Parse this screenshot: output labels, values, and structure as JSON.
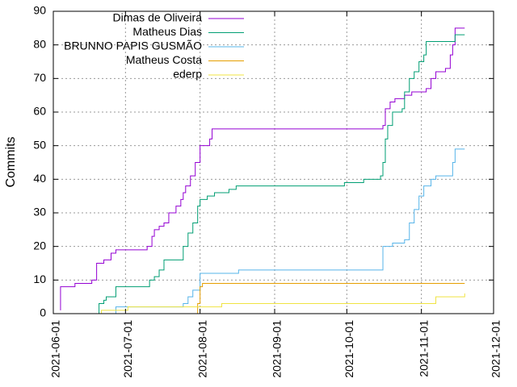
{
  "chart_data": {
    "type": "line",
    "title": "",
    "xlabel": "",
    "ylabel": "Commits",
    "xlim": [
      "2021-06-01",
      "2021-12-01"
    ],
    "ylim": [
      0,
      90
    ],
    "x_ticks": [
      "2021-06-01",
      "2021-07-01",
      "2021-08-01",
      "2021-09-01",
      "2021-10-01",
      "2021-11-01",
      "2021-12-01"
    ],
    "y_ticks": [
      0,
      10,
      20,
      30,
      40,
      50,
      60,
      70,
      80,
      90
    ],
    "grid": true,
    "legend": "top-left-inside",
    "series": [
      {
        "name": "Dimas de Oliveira",
        "color": "#9400d3",
        "points": [
          [
            "2021-06-04",
            1
          ],
          [
            "2021-06-04",
            8
          ],
          [
            "2021-06-10",
            9
          ],
          [
            "2021-06-17",
            10
          ],
          [
            "2021-06-19",
            15
          ],
          [
            "2021-06-22",
            16
          ],
          [
            "2021-06-25",
            18
          ],
          [
            "2021-06-27",
            19
          ],
          [
            "2021-07-08",
            19
          ],
          [
            "2021-07-10",
            20
          ],
          [
            "2021-07-12",
            23
          ],
          [
            "2021-07-13",
            25
          ],
          [
            "2021-07-15",
            26
          ],
          [
            "2021-07-17",
            27
          ],
          [
            "2021-07-19",
            30
          ],
          [
            "2021-07-22",
            32
          ],
          [
            "2021-07-24",
            34
          ],
          [
            "2021-07-25",
            36
          ],
          [
            "2021-07-26",
            38
          ],
          [
            "2021-07-28",
            41
          ],
          [
            "2021-07-30",
            45
          ],
          [
            "2021-08-01",
            50
          ],
          [
            "2021-08-05",
            52
          ],
          [
            "2021-08-06",
            55
          ],
          [
            "2021-10-15",
            55
          ],
          [
            "2021-10-16",
            56
          ],
          [
            "2021-10-17",
            61
          ],
          [
            "2021-10-19",
            63
          ],
          [
            "2021-10-21",
            64
          ],
          [
            "2021-10-25",
            65
          ],
          [
            "2021-10-28",
            66
          ],
          [
            "2021-11-01",
            66
          ],
          [
            "2021-11-03",
            67
          ],
          [
            "2021-11-05",
            70
          ],
          [
            "2021-11-07",
            72
          ],
          [
            "2021-11-11",
            73
          ],
          [
            "2021-11-13",
            77
          ],
          [
            "2021-11-14",
            80
          ],
          [
            "2021-11-15",
            85
          ],
          [
            "2021-11-19",
            85
          ]
        ]
      },
      {
        "name": "Matheus Dias",
        "color": "#009e73",
        "points": [
          [
            "2021-06-20",
            0
          ],
          [
            "2021-06-20",
            3
          ],
          [
            "2021-06-22",
            4
          ],
          [
            "2021-06-23",
            5
          ],
          [
            "2021-06-27",
            8
          ],
          [
            "2021-07-10",
            8
          ],
          [
            "2021-07-11",
            10
          ],
          [
            "2021-07-13",
            11
          ],
          [
            "2021-07-15",
            13
          ],
          [
            "2021-07-17",
            16
          ],
          [
            "2021-07-24",
            16
          ],
          [
            "2021-07-25",
            20
          ],
          [
            "2021-07-27",
            24
          ],
          [
            "2021-07-29",
            27
          ],
          [
            "2021-07-31",
            32
          ],
          [
            "2021-08-01",
            34
          ],
          [
            "2021-08-04",
            35
          ],
          [
            "2021-08-07",
            36
          ],
          [
            "2021-08-13",
            37
          ],
          [
            "2021-08-16",
            38
          ],
          [
            "2021-09-20",
            38
          ],
          [
            "2021-09-30",
            39
          ],
          [
            "2021-10-08",
            40
          ],
          [
            "2021-10-15",
            41
          ],
          [
            "2021-10-16",
            45
          ],
          [
            "2021-10-17",
            52
          ],
          [
            "2021-10-18",
            56
          ],
          [
            "2021-10-20",
            60
          ],
          [
            "2021-10-24",
            61
          ],
          [
            "2021-10-25",
            66
          ],
          [
            "2021-10-27",
            70
          ],
          [
            "2021-10-29",
            72
          ],
          [
            "2021-10-31",
            75
          ],
          [
            "2021-11-02",
            77
          ],
          [
            "2021-11-03",
            81
          ],
          [
            "2021-11-14",
            81
          ],
          [
            "2021-11-15",
            83
          ],
          [
            "2021-11-19",
            83
          ]
        ]
      },
      {
        "name": "BRUNNO PAPIS GUSMÃO",
        "color": "#56b4e9",
        "points": [
          [
            "2021-06-27",
            0
          ],
          [
            "2021-06-27",
            2
          ],
          [
            "2021-07-23",
            2
          ],
          [
            "2021-07-25",
            3
          ],
          [
            "2021-07-27",
            5
          ],
          [
            "2021-07-29",
            7
          ],
          [
            "2021-08-01",
            12
          ],
          [
            "2021-08-10",
            12
          ],
          [
            "2021-08-17",
            13
          ],
          [
            "2021-10-15",
            13
          ],
          [
            "2021-10-16",
            20
          ],
          [
            "2021-10-20",
            21
          ],
          [
            "2021-10-25",
            22
          ],
          [
            "2021-10-27",
            27
          ],
          [
            "2021-10-29",
            31
          ],
          [
            "2021-10-31",
            35
          ],
          [
            "2021-11-02",
            38
          ],
          [
            "2021-11-05",
            40
          ],
          [
            "2021-11-07",
            41
          ],
          [
            "2021-11-12",
            41
          ],
          [
            "2021-11-14",
            45
          ],
          [
            "2021-11-15",
            49
          ],
          [
            "2021-11-19",
            49
          ]
        ]
      },
      {
        "name": "Matheus Costa",
        "color": "#e69f00",
        "points": [
          [
            "2021-07-31",
            0
          ],
          [
            "2021-07-31",
            3
          ],
          [
            "2021-08-01",
            8
          ],
          [
            "2021-08-02",
            9
          ],
          [
            "2021-11-19",
            9
          ]
        ]
      },
      {
        "name": "ederp",
        "color": "#f0e442",
        "points": [
          [
            "2021-06-20",
            0
          ],
          [
            "2021-06-21",
            1
          ],
          [
            "2021-06-27",
            1
          ],
          [
            "2021-07-02",
            2
          ],
          [
            "2021-07-30",
            2
          ],
          [
            "2021-08-10",
            3
          ],
          [
            "2021-11-05",
            3
          ],
          [
            "2021-11-07",
            5
          ],
          [
            "2021-11-15",
            5
          ],
          [
            "2021-11-19",
            6
          ]
        ]
      }
    ]
  }
}
